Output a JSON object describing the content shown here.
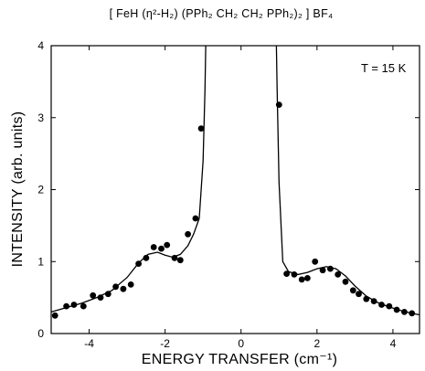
{
  "chart_data": {
    "type": "scatter",
    "title": "[ FeH (η²-H₂) (PPh₂ CH₂ CH₂ PPh₂)₂ ] BF₄",
    "xlabel": "ENERGY TRANSFER (cm⁻¹)",
    "ylabel": "INTENSITY (arb. units)",
    "annotation": "T = 15 K",
    "xlim": [
      -5,
      4.7
    ],
    "ylim": [
      0,
      4
    ],
    "x_ticks": [
      -4,
      -2,
      0,
      2,
      4
    ],
    "y_ticks": [
      0,
      1,
      2,
      3,
      4
    ],
    "grid": false,
    "series": [
      {
        "kind": "points",
        "x": [
          -4.9,
          -4.6,
          -4.4,
          -4.15,
          -3.9,
          -3.7,
          -3.5,
          -3.3,
          -3.1,
          -2.9,
          -2.7,
          -2.5,
          -2.3,
          -2.1,
          -1.95,
          -1.75,
          -1.6,
          -1.4,
          -1.2,
          -1.05,
          1.0,
          1.2,
          1.4,
          1.6,
          1.75,
          1.95,
          2.15,
          2.35,
          2.55,
          2.75,
          2.95,
          3.1,
          3.3,
          3.5,
          3.7,
          3.9,
          4.1,
          4.3,
          4.5
        ],
        "y": [
          0.25,
          0.38,
          0.4,
          0.38,
          0.53,
          0.5,
          0.55,
          0.65,
          0.62,
          0.68,
          0.97,
          1.05,
          1.2,
          1.18,
          1.23,
          1.05,
          1.02,
          1.38,
          1.6,
          2.85,
          3.18,
          0.83,
          0.82,
          0.75,
          0.77,
          1.0,
          0.88,
          0.9,
          0.82,
          0.72,
          0.6,
          0.55,
          0.48,
          0.45,
          0.4,
          0.38,
          0.33,
          0.3,
          0.28
        ]
      },
      {
        "kind": "line",
        "x": [
          -5.0,
          -4.6,
          -4.2,
          -3.8,
          -3.4,
          -3.0,
          -2.7,
          -2.45,
          -2.2,
          -2.0,
          -1.8,
          -1.6,
          -1.4,
          -1.25,
          -1.1,
          -1.0,
          -0.95,
          -0.93,
          0.93,
          0.95,
          1.0,
          1.1,
          1.25,
          1.5,
          1.75,
          2.0,
          2.25,
          2.5,
          2.75,
          3.0,
          3.3,
          3.6,
          3.9,
          4.2,
          4.5,
          4.7
        ],
        "y": [
          0.3,
          0.36,
          0.42,
          0.5,
          0.6,
          0.78,
          0.98,
          1.1,
          1.13,
          1.09,
          1.06,
          1.1,
          1.22,
          1.38,
          1.6,
          2.4,
          3.4,
          4.0,
          4.0,
          3.4,
          2.1,
          1.0,
          0.86,
          0.82,
          0.85,
          0.9,
          0.93,
          0.9,
          0.8,
          0.66,
          0.52,
          0.43,
          0.37,
          0.32,
          0.28,
          0.26
        ]
      }
    ]
  }
}
